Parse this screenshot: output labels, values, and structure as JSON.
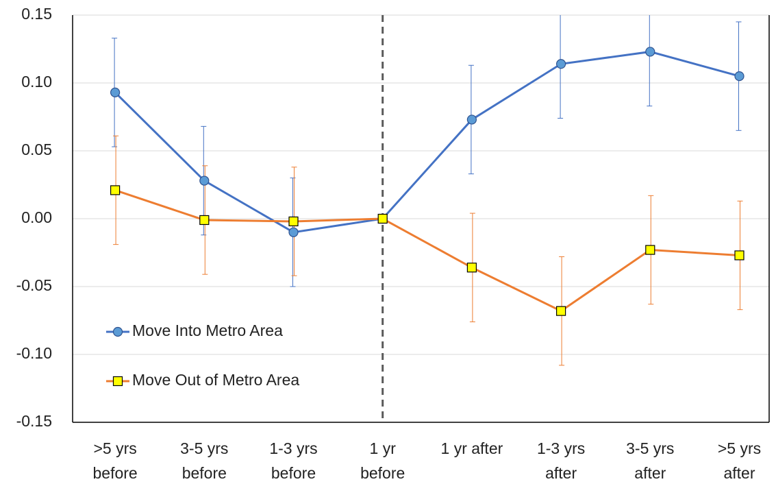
{
  "chart_data": {
    "type": "line",
    "categories": [
      [
        ">5 yrs",
        "before"
      ],
      [
        "3-5 yrs",
        "before"
      ],
      [
        "1-3 yrs",
        "before"
      ],
      [
        "1 yr",
        "before"
      ],
      [
        "1 yr after"
      ],
      [
        "1-3 yrs",
        "after"
      ],
      [
        "3-5 yrs",
        "after"
      ],
      [
        ">5 yrs",
        "after"
      ]
    ],
    "series": [
      {
        "name": "Move Into Metro Area",
        "color": "#4472c4",
        "marker": "circle",
        "marker_color": "#5b9bd5",
        "values": [
          0.093,
          0.028,
          -0.01,
          0.0,
          0.073,
          0.114,
          0.123,
          0.105
        ],
        "errors": [
          0.04,
          0.04,
          0.04,
          0,
          0.04,
          0.04,
          0.04,
          0.04
        ]
      },
      {
        "name": "Move Out of Metro Area",
        "color": "#ed7d31",
        "marker": "square",
        "marker_color": "#ffff00",
        "values": [
          0.021,
          -0.001,
          -0.002,
          0.0,
          -0.036,
          -0.068,
          -0.023,
          -0.027
        ],
        "errors": [
          0.04,
          0.04,
          0.04,
          0,
          0.04,
          0.04,
          0.04,
          0.04
        ]
      }
    ],
    "ylim": [
      -0.15,
      0.15
    ],
    "yticks": [
      0.15,
      {
        "value": 0.1,
        "label": "0.10"
      },
      0.05,
      {
        "value": 0.0,
        "label": "0.00"
      },
      -0.05,
      {
        "value": -0.1,
        "label": "-0.10"
      },
      -0.15
    ],
    "grid": true,
    "legend": "lower-left"
  }
}
